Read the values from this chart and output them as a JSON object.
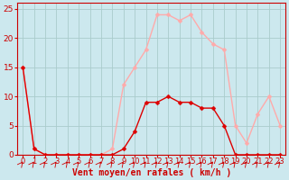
{
  "xlabel": "Vent moyen/en rafales ( km/h )",
  "background_color": "#cce8ee",
  "grid_color": "#aacccc",
  "x_labels": [
    "0",
    "1",
    "2",
    "3",
    "4",
    "5",
    "6",
    "7",
    "8",
    "9",
    "10",
    "11",
    "12",
    "13",
    "14",
    "15",
    "16",
    "17",
    "18",
    "19",
    "20",
    "21",
    "22",
    "23"
  ],
  "x_values": [
    0,
    1,
    2,
    3,
    4,
    5,
    6,
    7,
    8,
    9,
    10,
    11,
    12,
    13,
    14,
    15,
    16,
    17,
    18,
    19,
    20,
    21,
    22,
    23
  ],
  "y_mean": [
    15,
    1,
    0,
    0,
    0,
    0,
    0,
    0,
    0,
    1,
    4,
    9,
    9,
    10,
    9,
    9,
    8,
    8,
    5,
    0,
    0,
    0,
    0,
    0
  ],
  "y_gust": [
    15,
    1,
    0,
    0,
    0,
    0,
    0,
    0,
    1,
    12,
    15,
    18,
    24,
    24,
    23,
    24,
    21,
    19,
    18,
    5,
    2,
    7,
    10,
    5
  ],
  "ylim": [
    0,
    26
  ],
  "yticks": [
    0,
    5,
    10,
    15,
    20,
    25
  ],
  "line_color_mean": "#dd0000",
  "line_color_gust": "#ffaaaa",
  "marker_size": 2.5,
  "line_width": 1.0,
  "xlabel_fontsize": 7,
  "tick_fontsize": 6.5,
  "axis_color": "#cc0000",
  "spine_color": "#cc0000"
}
